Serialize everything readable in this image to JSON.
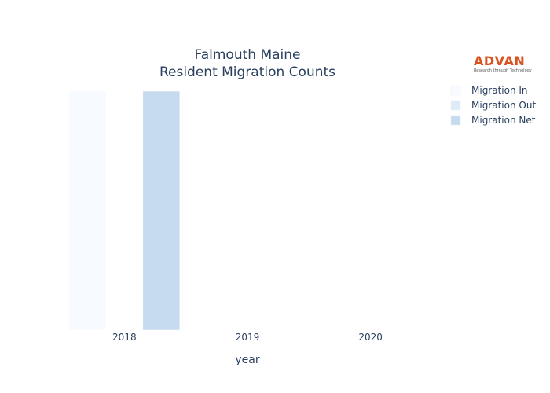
{
  "logo": {
    "name": "ADVAN",
    "tagline": "Research through Technology"
  },
  "chart_data": {
    "type": "bar",
    "title": [
      "Falmouth Maine",
      "Resident Migration Counts"
    ],
    "xlabel": "year",
    "ylabel": "",
    "categories": [
      "2018",
      "2019",
      "2020"
    ],
    "series": [
      {
        "name": "Migration In",
        "values": [
          1,
          0,
          0
        ],
        "color": "#f7fbff"
      },
      {
        "name": "Migration Out",
        "values": [
          0,
          0,
          0
        ],
        "color": "#deebf7"
      },
      {
        "name": "Migration Net",
        "values": [
          1,
          0,
          0
        ],
        "color": "#c6dbef"
      }
    ],
    "ylim": [
      0,
      1
    ],
    "grid": false,
    "legend_position": "top-right"
  }
}
